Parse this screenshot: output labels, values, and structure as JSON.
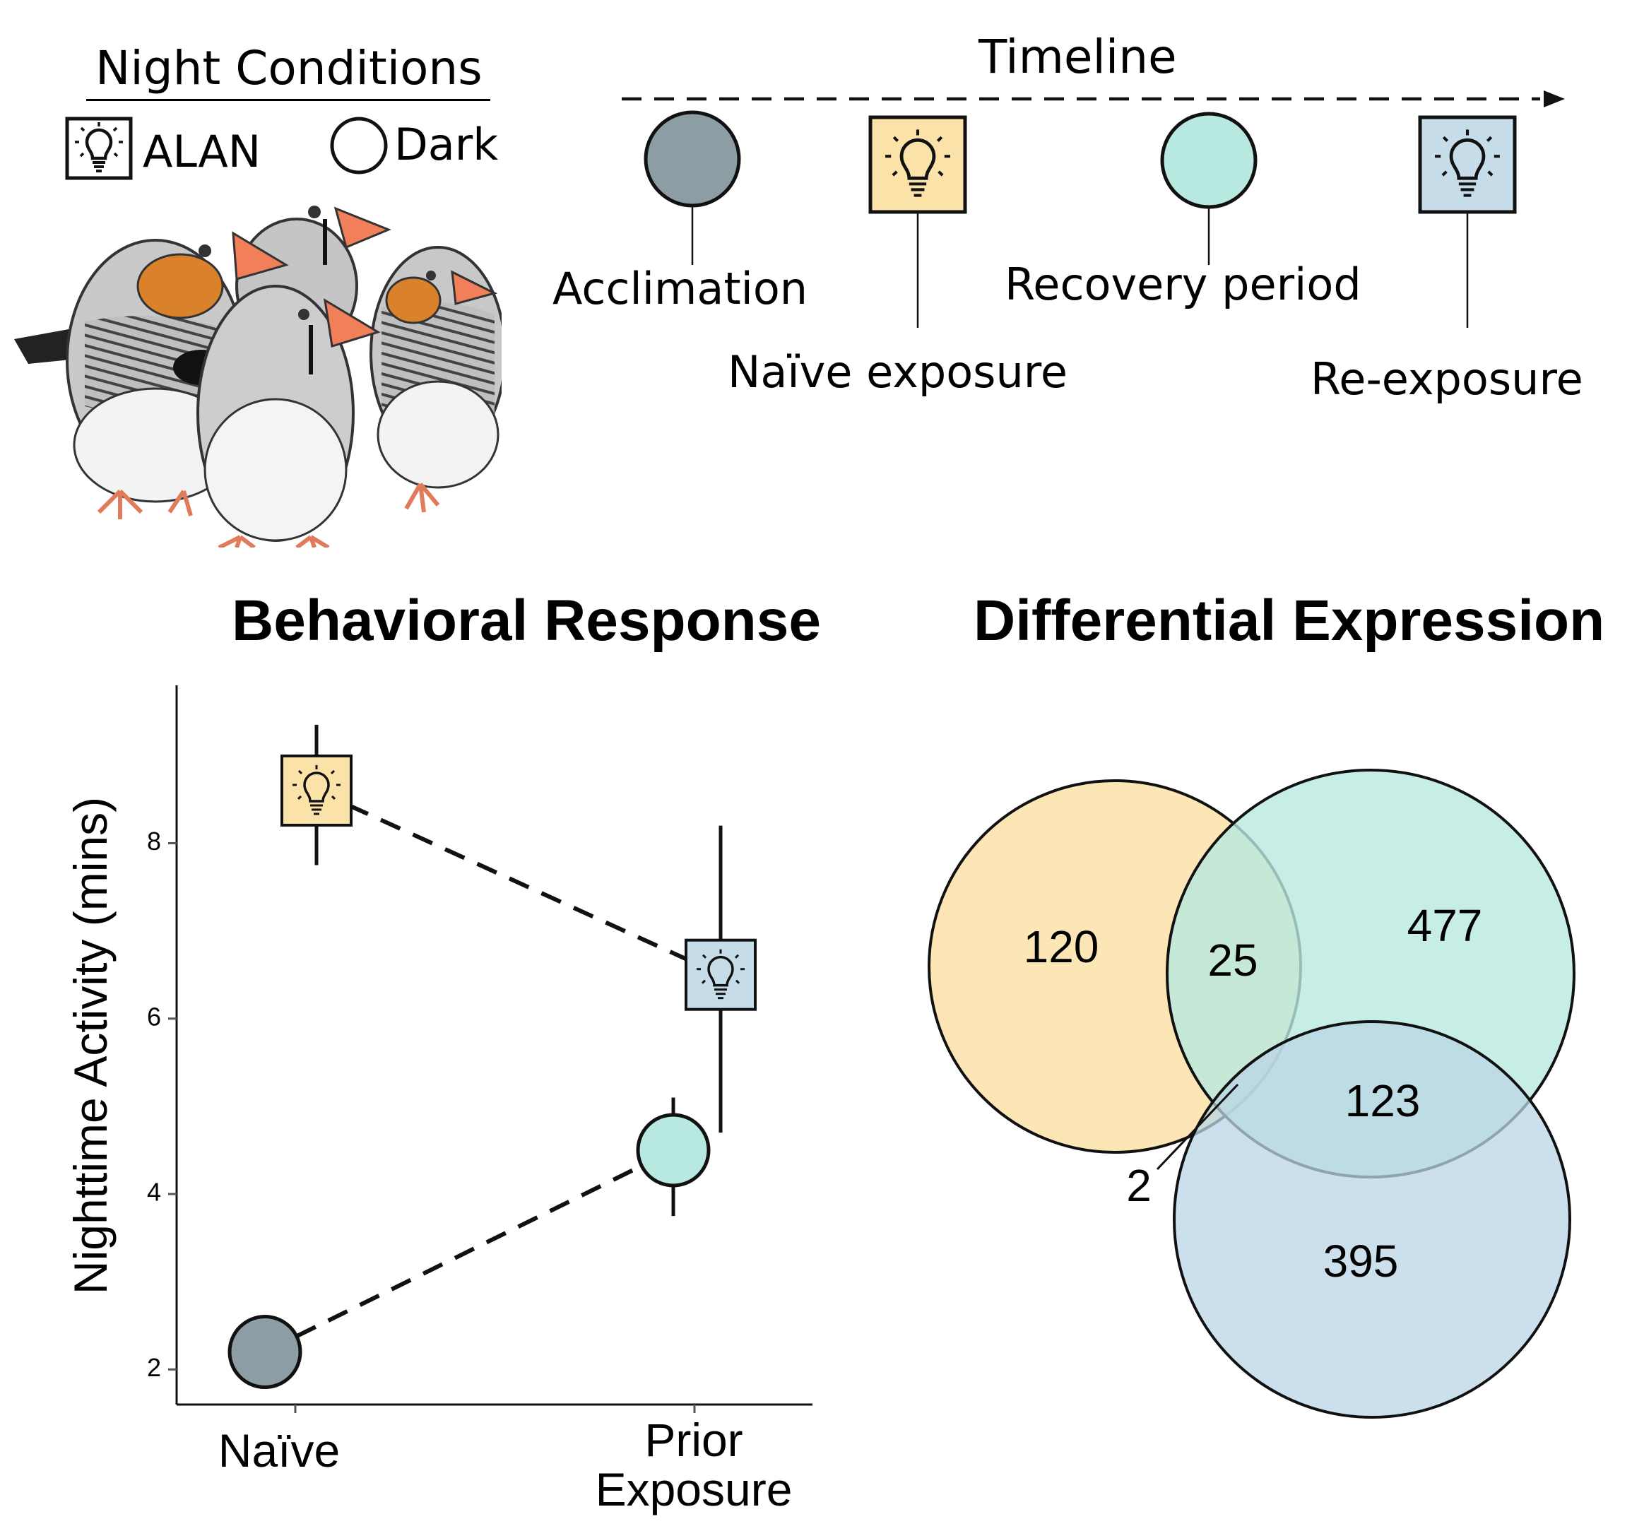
{
  "legend": {
    "title": "Night Conditions",
    "alan_label": "ALAN",
    "dark_label": "Dark"
  },
  "timeline": {
    "title": "Timeline",
    "stages": [
      {
        "label": "Acclimation",
        "marker": "circle",
        "color": "#8c9ea3"
      },
      {
        "label": "Naïve exposure",
        "marker": "lightbulb-square",
        "color": "#fbe2a8"
      },
      {
        "label": "Recovery period",
        "marker": "circle",
        "color": "#b8e9e0"
      },
      {
        "label": "Re-exposure",
        "marker": "lightbulb-square",
        "color": "#c6dde9"
      }
    ]
  },
  "colors": {
    "acclimation": "#8c9ea3",
    "naive_exposure": "#fbe2a8",
    "recovery": "#b8e9e0",
    "re_exposure": "#c6dde9"
  },
  "behavior": {
    "title": "Behavioral Response",
    "chart_data": {
      "type": "scatter",
      "categories": [
        "Naïve",
        "Prior Exposure"
      ],
      "ylabel": "Nighttime Activity (mins)",
      "yticks": [
        2,
        4,
        6,
        8
      ],
      "ylim": [
        1.6,
        9.8
      ],
      "series": [
        {
          "condition": "ALAN",
          "marker": "lightbulb-square",
          "points": [
            {
              "x": "Naïve",
              "y": 8.6,
              "ymin": 7.75,
              "ymax": 9.35,
              "fill": "#fbe2a8"
            },
            {
              "x": "Prior Exposure",
              "y": 6.5,
              "ymin": 4.7,
              "ymax": 8.2,
              "fill": "#c6dde9"
            }
          ]
        },
        {
          "condition": "Dark",
          "marker": "circle",
          "points": [
            {
              "x": "Naïve",
              "y": 2.2,
              "ymin": null,
              "ymax": null,
              "fill": "#8c9ea3"
            },
            {
              "x": "Prior Exposure",
              "y": 4.5,
              "ymin": 3.75,
              "ymax": 5.1,
              "fill": "#b8e9e0"
            }
          ]
        }
      ]
    }
  },
  "venn": {
    "title": "Differential Expression",
    "regions": {
      "naive_only": "120",
      "naive_recovery": "25",
      "recovery_only": "477",
      "recovery_reexposure": "123",
      "naive_reexposure": "2",
      "reexposure_only": "395"
    }
  }
}
